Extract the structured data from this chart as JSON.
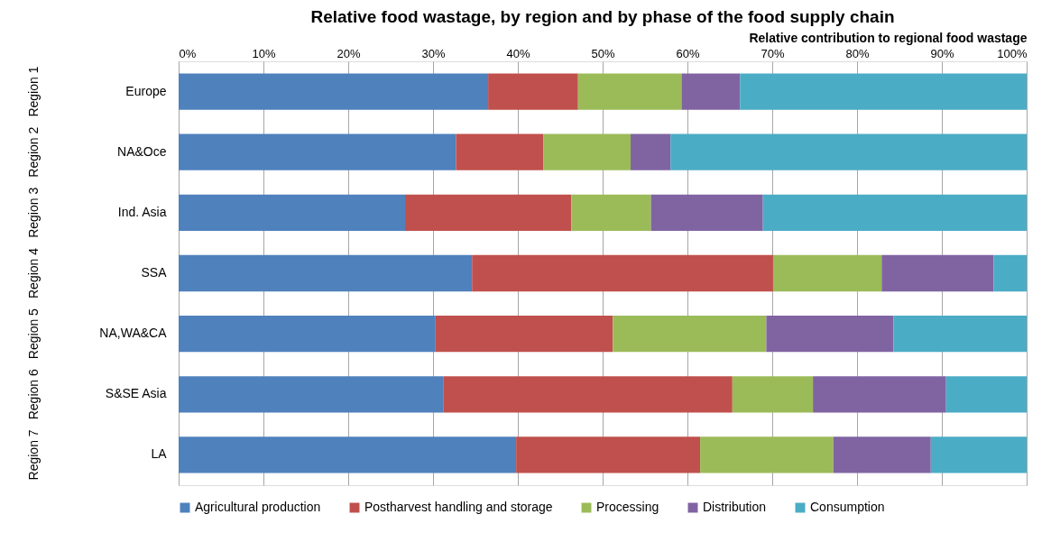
{
  "chart_data": {
    "type": "bar",
    "orientation": "horizontal",
    "stacked": true,
    "title": "Relative food wastage, by region and by phase of the food supply chain",
    "xlabel": "Relative contribution to regional food wastage",
    "categories": [
      "Europe",
      "NA&Oce",
      "Ind. Asia",
      "SSA",
      "NA,WA&CA",
      "S&SE Asia",
      "LA"
    ],
    "series": [
      {
        "name": "Agricultural production",
        "color": "#4f81bd",
        "values": [
          36.5,
          32.7,
          26.7,
          34.6,
          30.3,
          31.2,
          39.8
        ]
      },
      {
        "name": "Postharvest handling and storage",
        "color": "#c0504d",
        "values": [
          10.6,
          10.3,
          19.6,
          35.5,
          20.9,
          34.1,
          21.7
        ]
      },
      {
        "name": "Processing",
        "color": "#9bbb59",
        "values": [
          12.2,
          10.3,
          9.4,
          12.8,
          18.1,
          9.5,
          15.7
        ]
      },
      {
        "name": "Distribution",
        "color": "#8064a2",
        "values": [
          6.9,
          4.7,
          13.2,
          13.2,
          15.0,
          15.7,
          11.5
        ]
      },
      {
        "name": "Consumption",
        "color": "#4bacc6",
        "values": [
          33.8,
          42.0,
          31.1,
          3.9,
          15.7,
          9.5,
          11.3
        ]
      }
    ],
    "xlim": [
      0,
      100
    ],
    "xticks": [
      {
        "value": 0,
        "label": "0%"
      },
      {
        "value": 10,
        "label": "10%"
      },
      {
        "value": 20,
        "label": "20%"
      },
      {
        "value": 30,
        "label": "30%"
      },
      {
        "value": 40,
        "label": "40%"
      },
      {
        "value": 50,
        "label": "50%"
      },
      {
        "value": 60,
        "label": "60%"
      },
      {
        "value": 70,
        "label": "70%"
      },
      {
        "value": 80,
        "label": "80%"
      },
      {
        "value": 90,
        "label": "90%"
      },
      {
        "value": 100,
        "label": "100%"
      }
    ],
    "annotations": [
      "Region 1",
      "Region 2",
      "Region 3",
      "Region 4",
      "Region 5",
      "Region 6",
      "Region 7"
    ],
    "grid": "x",
    "legend": "bottom"
  }
}
